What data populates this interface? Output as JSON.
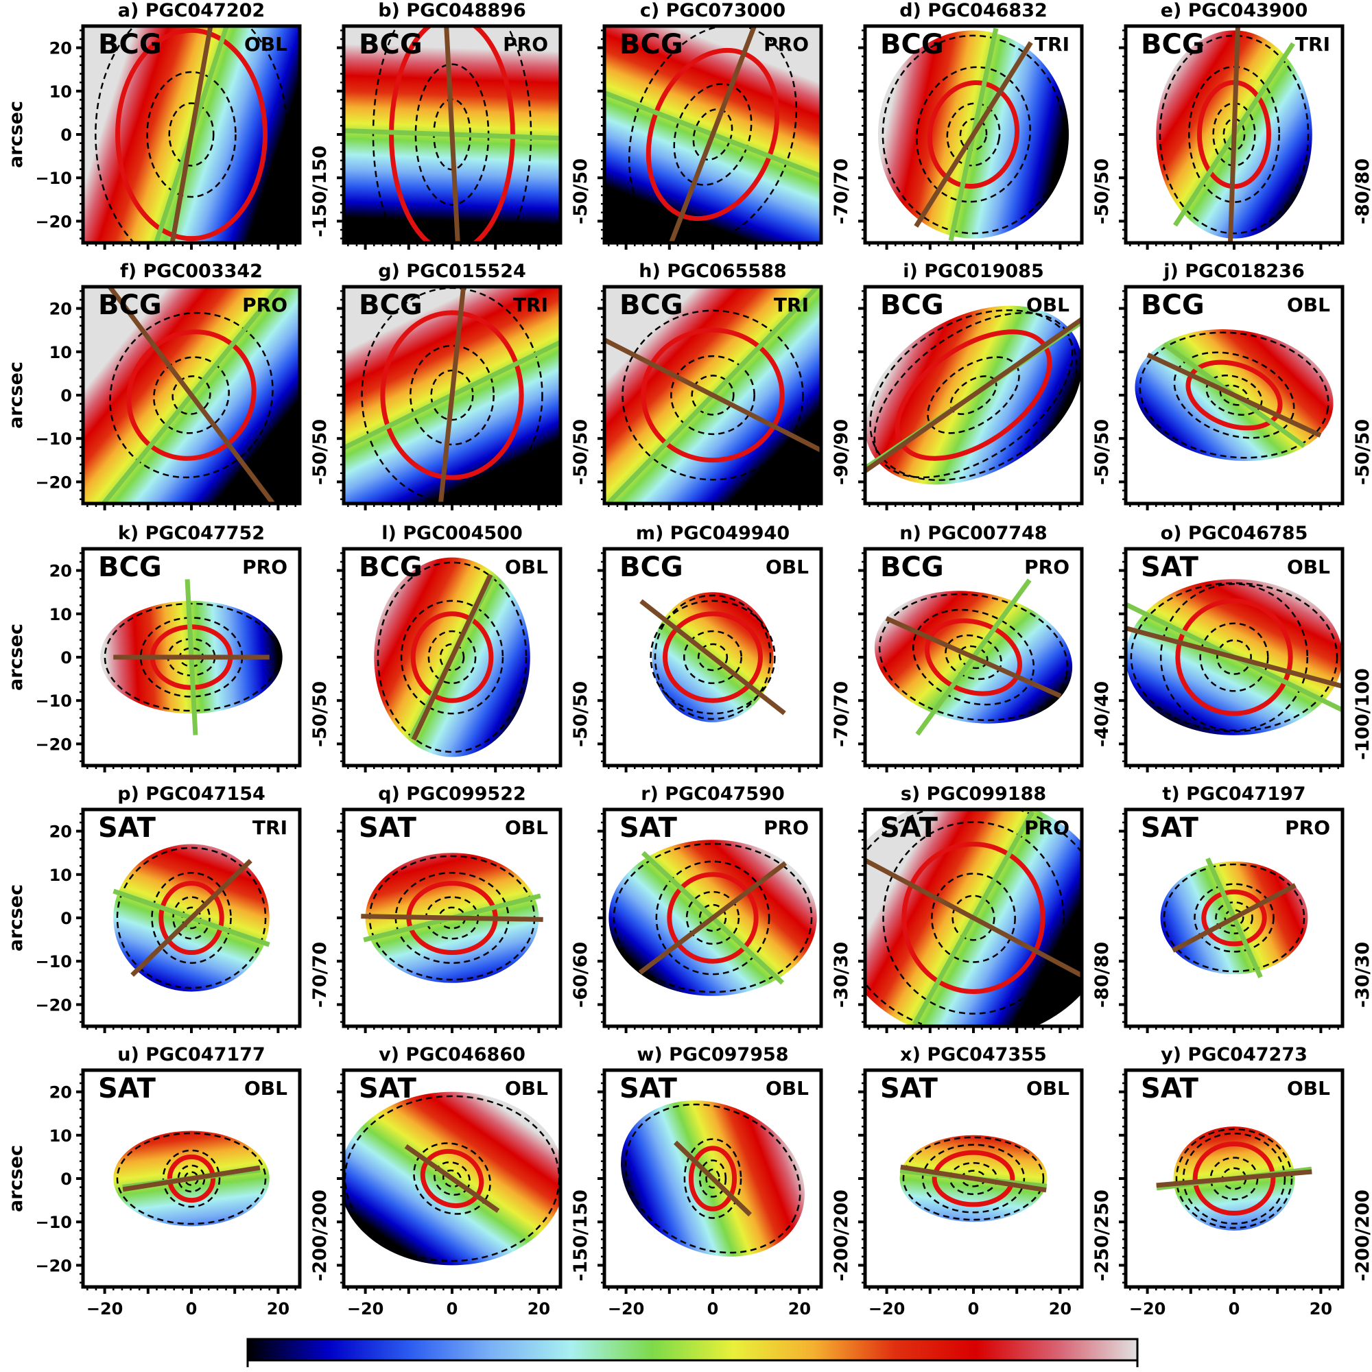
{
  "chart_data": {
    "type": "heatmap",
    "title": "",
    "ylabel": "arcsec",
    "xlim": [
      -25,
      25
    ],
    "ylim": [
      -25,
      25
    ],
    "xticks": [
      "-20",
      "0",
      "20"
    ],
    "yticks": [
      "20",
      "10",
      "0",
      "-10",
      "-20"
    ],
    "colormap_stops": [
      "#000000",
      "#0000c8",
      "#2b5cf0",
      "#7ab0f5",
      "#a8f0f0",
      "#7dd94a",
      "#e8f03a",
      "#f5b030",
      "#e03010",
      "#d80000",
      "#d86070",
      "#e0e0e0"
    ],
    "line_colors": {
      "brown": "#7a4a26",
      "green": "#7cc84a",
      "ellipse": "#e01010"
    },
    "panels": [
      {
        "label": "a) PGC047202",
        "env": "BCG",
        "shape": "OBL",
        "vrange": "-150/150",
        "ellipse": {
          "a": 17,
          "b": 24,
          "pa": 0
        },
        "brown": 80,
        "green": 72,
        "map": {
          "rx": 40,
          "ry": 40,
          "rot": 0
        },
        "len": 40,
        "glen": 40
      },
      {
        "label": "b) PGC048896",
        "env": "BCG",
        "shape": "PRO",
        "vrange": "-50/50",
        "ellipse": {
          "a": 14,
          "b": 27,
          "pa": 0
        },
        "brown": 93,
        "green": -2,
        "map": {
          "rx": 40,
          "ry": 40,
          "rot": 0
        },
        "len": 40,
        "glen": 40
      },
      {
        "label": "c) PGC073000",
        "env": "BCG",
        "shape": "PRO",
        "vrange": "-70/70",
        "ellipse": {
          "a": 14,
          "b": 20,
          "pa": -20
        },
        "brown": 69,
        "green": -21,
        "map": {
          "rx": 40,
          "ry": 40,
          "rot": 0
        },
        "len": 40,
        "glen": 40
      },
      {
        "label": "d) PGC046832",
        "env": "BCG",
        "shape": "TRI",
        "vrange": "-50/50",
        "ellipse": {
          "a": 10,
          "b": 12,
          "pa": -10
        },
        "brown": 58,
        "green": 78,
        "map": {
          "rx": 22,
          "ry": 24,
          "rot": 0
        },
        "len": 25,
        "glen": 25
      },
      {
        "label": "e) PGC043900",
        "env": "BCG",
        "shape": "TRI",
        "vrange": "-80/80",
        "ellipse": {
          "a": 8,
          "b": 12,
          "pa": 0
        },
        "brown": 88,
        "green": 57,
        "map": {
          "rx": 18,
          "ry": 24,
          "rot": 0
        },
        "len": 25,
        "glen": 25
      },
      {
        "label": "f) PGC003342",
        "env": "BCG",
        "shape": "PRO",
        "vrange": "-50/50",
        "ellipse": {
          "a": 14,
          "b": 15,
          "pa": -40
        },
        "brown": -53,
        "green": 51,
        "map": {
          "rx": 40,
          "ry": 40,
          "rot": 0
        },
        "len": 40,
        "glen": 40
      },
      {
        "label": "g) PGC015524",
        "env": "BCG",
        "shape": "TRI",
        "vrange": "-50/50",
        "ellipse": {
          "a": 16,
          "b": 19,
          "pa": 0
        },
        "brown": 84,
        "green": 26,
        "map": {
          "rx": 40,
          "ry": 40,
          "rot": 0
        },
        "len": 40,
        "glen": 40
      },
      {
        "label": "h) PGC065588",
        "env": "BCG",
        "shape": "TRI",
        "vrange": "-90/90",
        "ellipse": {
          "a": 16,
          "b": 15,
          "pa": 0
        },
        "brown": -27,
        "green": 46,
        "map": {
          "rx": 40,
          "ry": 40,
          "rot": 0
        },
        "len": 40,
        "glen": 40
      },
      {
        "label": "i) PGC019085",
        "env": "BCG",
        "shape": "OBL",
        "vrange": "-50/50",
        "ellipse": {
          "a": 20,
          "b": 11,
          "pa": 35
        },
        "brown": 35,
        "green": 34,
        "map": {
          "rx": 27,
          "ry": 18,
          "rot": 30
        },
        "len": 40,
        "glen": 40
      },
      {
        "label": "j) PGC018236",
        "env": "BCG",
        "shape": "OBL",
        "vrange": "-50/50",
        "ellipse": {
          "a": 11,
          "b": 7,
          "pa": -20
        },
        "brown": -25,
        "green": -36,
        "map": {
          "rx": 23,
          "ry": 15,
          "rot": -8
        },
        "len": 22,
        "glen": 20
      },
      {
        "label": "k) PGC047752",
        "env": "BCG",
        "shape": "PRO",
        "vrange": "-50/50",
        "ellipse": {
          "a": 9,
          "b": 7,
          "pa": 0
        },
        "brown": 0,
        "green": 93,
        "map": {
          "rx": 21,
          "ry": 13,
          "rot": 0
        },
        "len": 18,
        "glen": 18
      },
      {
        "label": "l) PGC004500",
        "env": "BCG",
        "shape": "OBL",
        "vrange": "-50/50",
        "ellipse": {
          "a": 9,
          "b": 10,
          "pa": 0
        },
        "brown": 65,
        "green": 63,
        "map": {
          "rx": 18,
          "ry": 23,
          "rot": 0
        },
        "len": 21,
        "glen": 21
      },
      {
        "label": "m) PGC049940",
        "env": "BCG",
        "shape": "OBL",
        "vrange": "-70/70",
        "ellipse": {
          "a": 11,
          "b": 10,
          "pa": 0
        },
        "brown": -38,
        "green": null,
        "map": {
          "rx": 14,
          "ry": 15,
          "rot": 0
        },
        "len": 21,
        "glen": 0
      },
      {
        "label": "n) PGC007748",
        "env": "BCG",
        "shape": "PRO",
        "vrange": "-40/40",
        "ellipse": {
          "a": 11,
          "b": 8,
          "pa": -20
        },
        "brown": -24,
        "green": 54,
        "map": {
          "rx": 23,
          "ry": 15,
          "rot": -10
        },
        "len": 22,
        "glen": 22
      },
      {
        "label": "o) PGC046785",
        "env": "SAT",
        "shape": "OBL",
        "vrange": "-100/100",
        "ellipse": {
          "a": 13,
          "b": 13,
          "pa": 0
        },
        "brown": -15,
        "green": -26,
        "map": {
          "rx": 25,
          "ry": 18,
          "rot": 0
        },
        "len": 30,
        "glen": 30
      },
      {
        "label": "p) PGC047154",
        "env": "SAT",
        "shape": "TRI",
        "vrange": "-70/70",
        "ellipse": {
          "a": 7,
          "b": 8,
          "pa": 0
        },
        "brown": 44,
        "green": -19,
        "map": {
          "rx": 18,
          "ry": 17,
          "rot": 0
        },
        "len": 19,
        "glen": 19
      },
      {
        "label": "q) PGC099522",
        "env": "SAT",
        "shape": "OBL",
        "vrange": "-60/60",
        "ellipse": {
          "a": 10,
          "b": 8,
          "pa": 0
        },
        "brown": -1,
        "green": 14,
        "map": {
          "rx": 20,
          "ry": 15,
          "rot": 0
        },
        "len": 21,
        "glen": 21
      },
      {
        "label": "r) PGC047590",
        "env": "SAT",
        "shape": "PRO",
        "vrange": "-30/30",
        "ellipse": {
          "a": 10,
          "b": 10,
          "pa": 0
        },
        "brown": 37,
        "green": -43,
        "map": {
          "rx": 24,
          "ry": 18,
          "rot": 0
        },
        "len": 21,
        "glen": 22
      },
      {
        "label": "s) PGC099188",
        "env": "SAT",
        "shape": "PRO",
        "vrange": "-80/80",
        "ellipse": {
          "a": 16,
          "b": 17,
          "pa": 0
        },
        "brown": -28,
        "green": 61,
        "map": {
          "rx": 32,
          "ry": 28,
          "rot": 0
        },
        "len": 40,
        "glen": 28
      },
      {
        "label": "t) PGC047197",
        "env": "SAT",
        "shape": "PRO",
        "vrange": "-30/30",
        "ellipse": {
          "a": 7,
          "b": 6,
          "pa": 0
        },
        "brown": 28,
        "green": -66,
        "map": {
          "rx": 17,
          "ry": 13,
          "rot": 0
        },
        "len": 16,
        "glen": 15
      },
      {
        "label": "u) PGC047177",
        "env": "SAT",
        "shape": "OBL",
        "vrange": "-200/200",
        "ellipse": {
          "a": 5,
          "b": 5,
          "pa": 0
        },
        "brown": 9,
        "green": 7,
        "map": {
          "rx": 18,
          "ry": 11,
          "rot": 0
        },
        "len": 16,
        "glen": 16
      },
      {
        "label": "v) PGC046860",
        "env": "SAT",
        "shape": "OBL",
        "vrange": "-150/150",
        "ellipse": {
          "a": 7,
          "b": 6,
          "pa": -30
        },
        "brown": -35,
        "green": -35,
        "map": {
          "rx": 26,
          "ry": 20,
          "rot": 0
        },
        "len": 13,
        "glen": 13
      },
      {
        "label": "w) PGC097958",
        "env": "SAT",
        "shape": "OBL",
        "vrange": "-200/200",
        "ellipse": {
          "a": 5,
          "b": 7,
          "pa": 0
        },
        "brown": -44,
        "green": -44,
        "map": {
          "rx": 22,
          "ry": 17,
          "rot": -25
        },
        "len": 12,
        "glen": 12
      },
      {
        "label": "x) PGC047355",
        "env": "SAT",
        "shape": "OBL",
        "vrange": "-250/250",
        "ellipse": {
          "a": 9,
          "b": 6,
          "pa": 0
        },
        "brown": -9,
        "green": -6,
        "map": {
          "rx": 17,
          "ry": 10,
          "rot": 0
        },
        "len": 17,
        "glen": 17
      },
      {
        "label": "y) PGC047273",
        "env": "SAT",
        "shape": "OBL",
        "vrange": "-200/200",
        "ellipse": {
          "a": 9,
          "b": 8,
          "pa": 0
        },
        "brown": 5,
        "green": 7,
        "map": {
          "rx": 14,
          "ry": 12,
          "rot": 0
        },
        "len": 18,
        "glen": 18
      }
    ]
  }
}
